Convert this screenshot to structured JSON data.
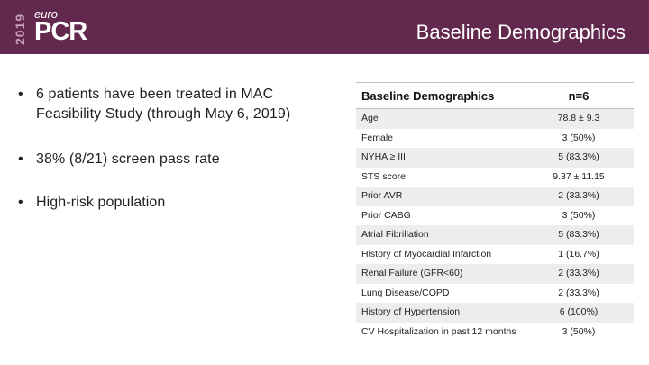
{
  "colors": {
    "header_bg": "#62284d",
    "row_shade": "#ededed"
  },
  "logo": {
    "year": "2019",
    "brand": "euro",
    "product": "PCR"
  },
  "title": "Baseline Demographics",
  "bullets": [
    "6 patients have been treated in MAC Feasibility Study (through May 6, 2019)",
    "38% (8/21) screen pass rate",
    "High-risk population"
  ],
  "table": {
    "headers": [
      "Baseline Demographics",
      "n=6"
    ],
    "rows": [
      [
        "Age",
        "78.8 ± 9.3"
      ],
      [
        "Female",
        "3 (50%)"
      ],
      [
        "NYHA ≥ III",
        "5 (83.3%)"
      ],
      [
        "STS score",
        "9.37 ± 11.15"
      ],
      [
        "Prior AVR",
        "2 (33.3%)"
      ],
      [
        "Prior CABG",
        "3 (50%)"
      ],
      [
        "Atrial Fibrillation",
        "5 (83.3%)"
      ],
      [
        "History of Myocardial Infarction",
        "1 (16.7%)"
      ],
      [
        "Renal Failure (GFR<60)",
        "2 (33.3%)"
      ],
      [
        "Lung Disease/COPD",
        "2 (33.3%)"
      ],
      [
        "History of Hypertension",
        "6 (100%)"
      ],
      [
        "CV Hospitalization in past 12 months",
        "3 (50%)"
      ]
    ]
  }
}
